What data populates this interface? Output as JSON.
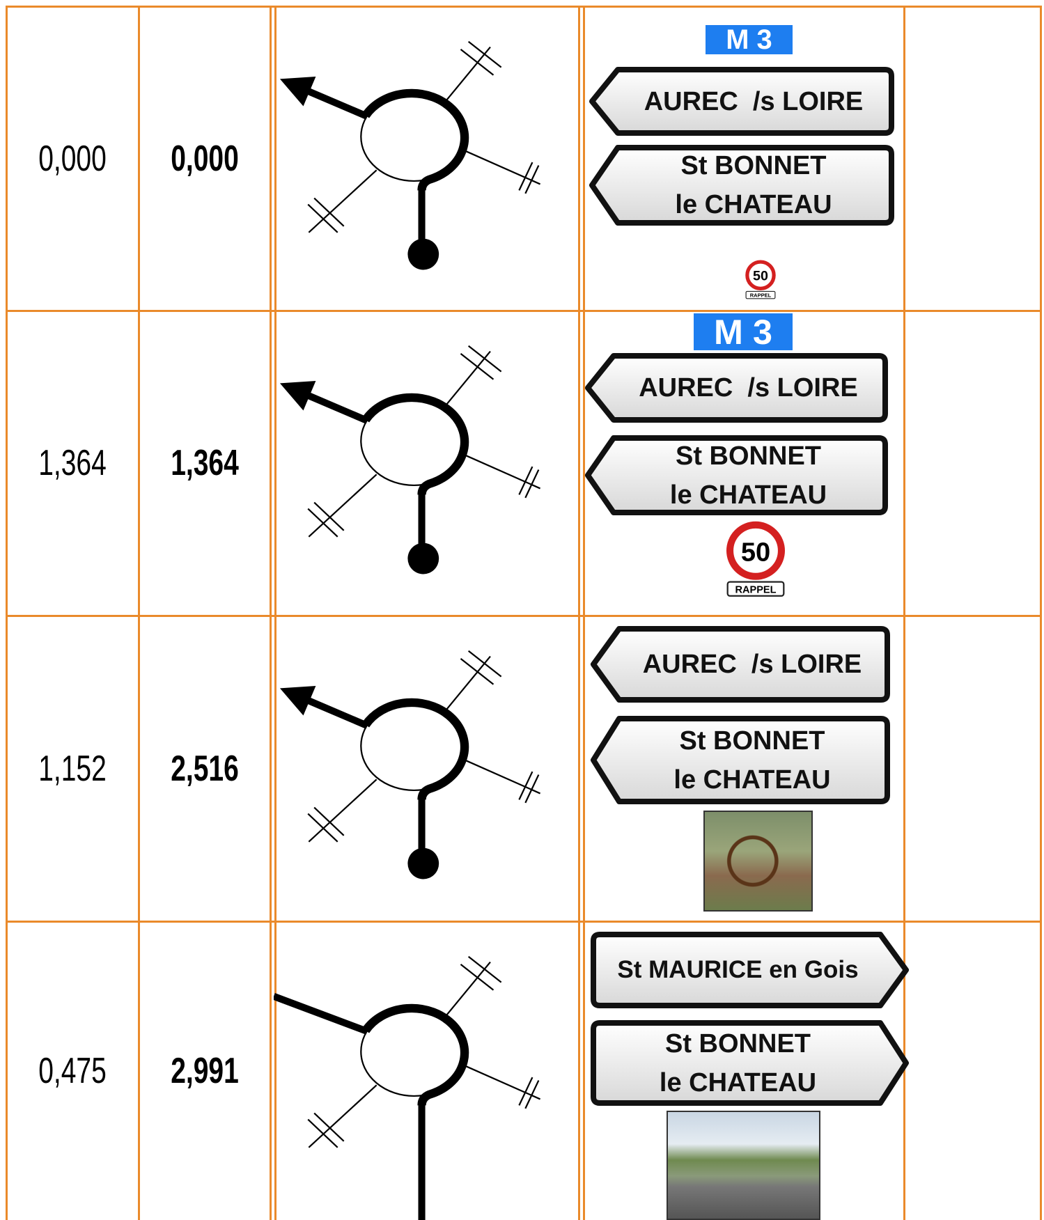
{
  "rows": [
    {
      "partial": "0,000",
      "total": "0,000",
      "route": "M 3",
      "signs": [
        {
          "direction": "left",
          "lines": [
            "AUREC  /s LOIRE"
          ]
        },
        {
          "direction": "left",
          "lines": [
            "St BONNET",
            "le CHATEAU"
          ]
        }
      ],
      "speed_sign": {
        "limit": "50",
        "label": "RAPPEL"
      }
    },
    {
      "partial": "1,364",
      "total": "1,364",
      "route": "M 3",
      "signs": [
        {
          "direction": "left",
          "lines": [
            "AUREC  /s LOIRE"
          ]
        },
        {
          "direction": "left",
          "lines": [
            "St BONNET",
            "le CHATEAU"
          ]
        }
      ],
      "speed_sign": {
        "limit": "50",
        "label": "RAPPEL"
      }
    },
    {
      "partial": "1,152",
      "total": "2,516",
      "signs": [
        {
          "direction": "left",
          "lines": [
            "AUREC  /s LOIRE"
          ]
        },
        {
          "direction": "left",
          "lines": [
            "St BONNET",
            "le CHATEAU"
          ]
        }
      ]
    },
    {
      "partial": "0,475",
      "total": "2,991",
      "signs": [
        {
          "direction": "right",
          "lines": [
            "St MAURICE en Gois"
          ]
        },
        {
          "direction": "right",
          "lines": [
            "St BONNET",
            "le CHATEAU"
          ]
        }
      ]
    }
  ]
}
